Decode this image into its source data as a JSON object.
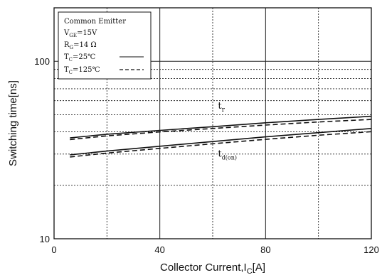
{
  "chart_data": {
    "type": "line",
    "xlabel_main": "Collector Current,I",
    "xlabel_sub": "C",
    "xlabel_unit": "[A]",
    "ylabel": "Switching time[ns]",
    "xlim": [
      0,
      120
    ],
    "ylim": [
      10,
      200
    ],
    "yscale": "log",
    "x_ticks": [
      {
        "value": 0,
        "label": "0"
      },
      {
        "value": 40,
        "label": "40"
      },
      {
        "value": 80,
        "label": "80"
      },
      {
        "value": 120,
        "label": "120"
      }
    ],
    "y_ticks": [
      {
        "value": 10,
        "label": "10"
      },
      {
        "value": 100,
        "label": "100"
      }
    ],
    "grid": true,
    "legend": {
      "placement": "top-left",
      "title": "Common Emitter",
      "conditions": [
        {
          "main": "V",
          "sub": "GE",
          "rest": "=15V"
        },
        {
          "main": "R",
          "sub": "G",
          "rest": "=14 Ω"
        }
      ],
      "entries": [
        {
          "main": "T",
          "sub": "C",
          "rest": "=25℃",
          "style": "solid"
        },
        {
          "main": "T",
          "sub": "C",
          "rest": "=125℃",
          "style": "dashed"
        }
      ]
    },
    "annotations": [
      {
        "main": "t",
        "sub": "r",
        "x": 62,
        "y": 54
      },
      {
        "main": "t",
        "sub": "d(on)",
        "x": 62,
        "y": 29
      }
    ],
    "series": [
      {
        "group": "tr",
        "style": "solid",
        "x": [
          6,
          20,
          40,
          60,
          80,
          100,
          120
        ],
        "y": [
          37,
          38.8,
          40.8,
          42.8,
          45,
          47,
          49
        ]
      },
      {
        "group": "tr",
        "style": "dashed",
        "x": [
          6,
          20,
          40,
          60,
          80,
          100,
          120
        ],
        "y": [
          36.2,
          38,
          40,
          41.8,
          43.7,
          45.5,
          47
        ]
      },
      {
        "group": "td(on)",
        "style": "solid",
        "x": [
          6,
          20,
          40,
          60,
          80,
          100,
          120
        ],
        "y": [
          29.7,
          31.2,
          33.2,
          35.3,
          37.5,
          39.6,
          41.8
        ]
      },
      {
        "group": "td(on)",
        "style": "dashed",
        "x": [
          6,
          20,
          40,
          60,
          80,
          100,
          120
        ],
        "y": [
          28.9,
          30.4,
          32.3,
          34.3,
          36.3,
          38.3,
          40.1
        ]
      }
    ]
  }
}
